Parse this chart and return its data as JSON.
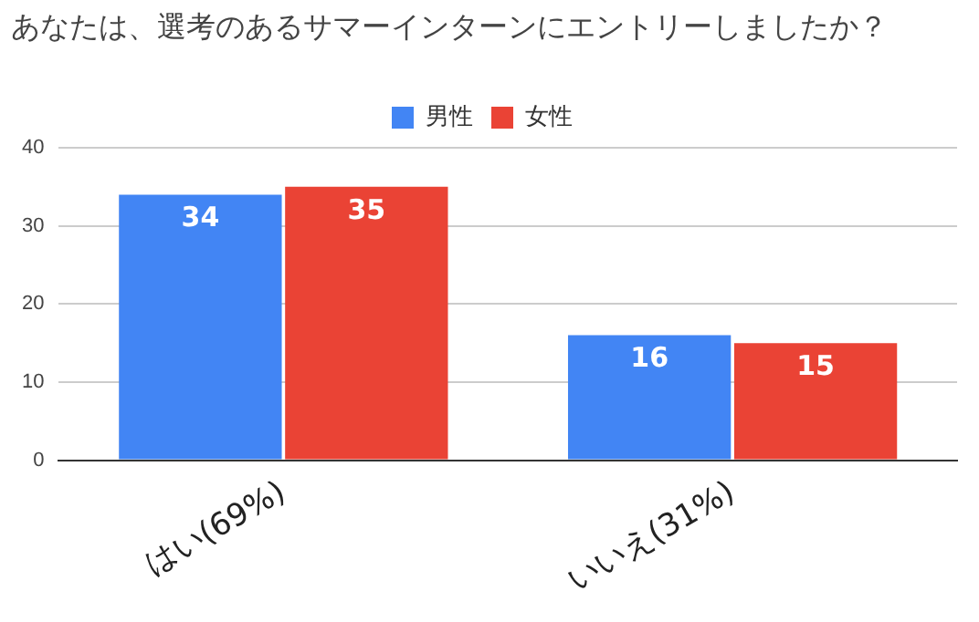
{
  "chart_data": {
    "type": "bar",
    "title": "あなたは、選考のあるサマーインターンにエントリーしましたか？",
    "categories": [
      "はい(69%)",
      "いいえ(31%)"
    ],
    "series": [
      {
        "name": "男性",
        "color": "#4285f4",
        "values": [
          34,
          16
        ]
      },
      {
        "name": "女性",
        "color": "#ea4335",
        "values": [
          35,
          15
        ]
      }
    ],
    "ylim": [
      0,
      40
    ],
    "yticks": [
      0,
      10,
      20,
      30,
      40
    ],
    "grid": "y",
    "legend": "top",
    "data_labels": true
  }
}
